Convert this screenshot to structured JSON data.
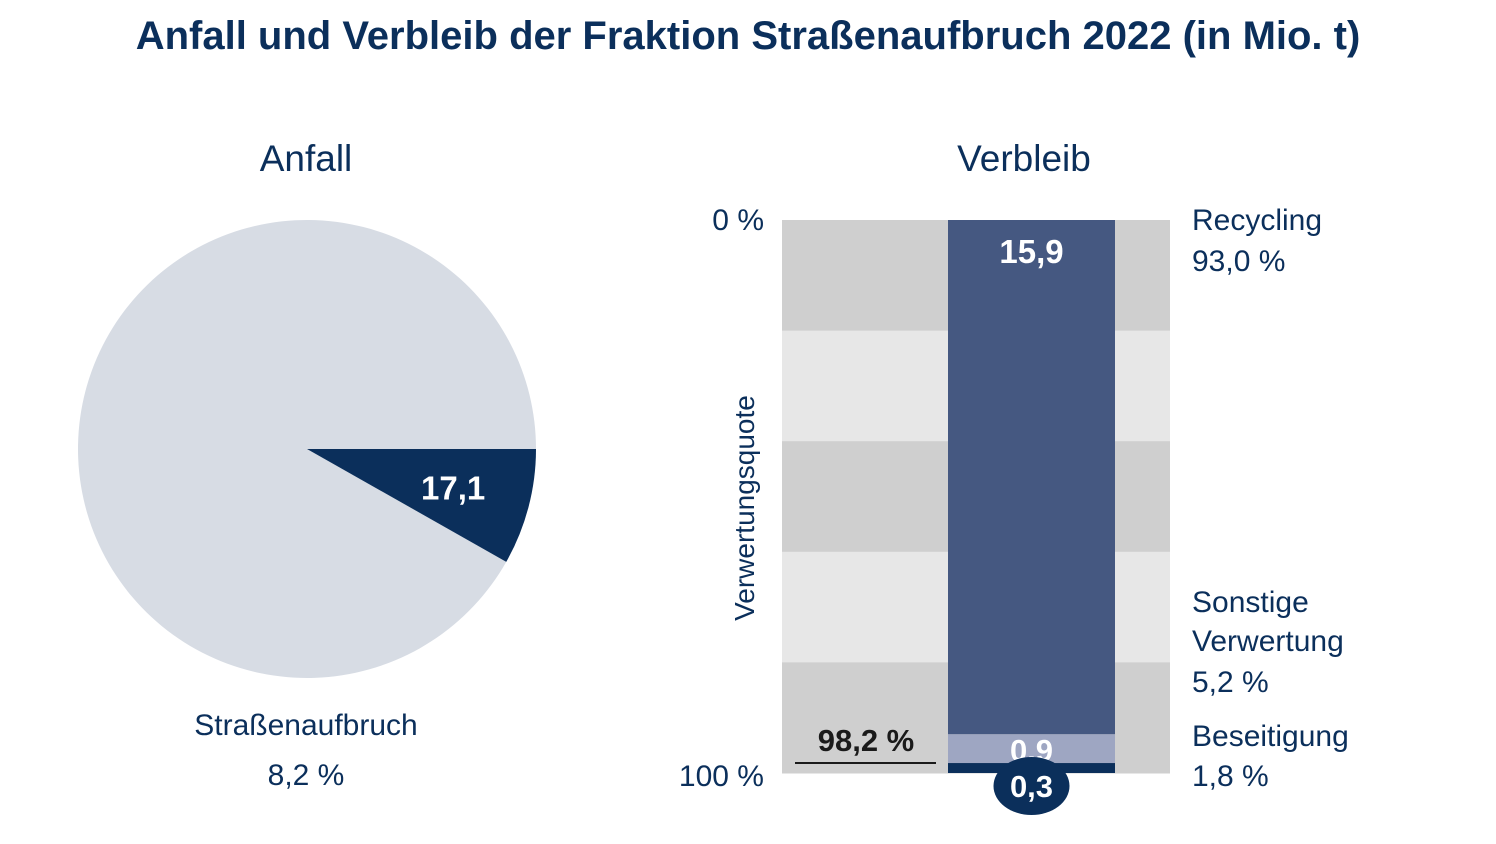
{
  "title": "Anfall und Verbleib der Fraktion Straßenaufbruch 2022 (in Mio. t)",
  "chart_data": [
    {
      "type": "pie",
      "title": "Anfall",
      "slices": [
        {
          "name": "Straßenaufbruch",
          "value": 17.1,
          "value_label": "17,1",
          "share_label": "8,2 %",
          "share": 8.2,
          "color": "#0b2f5b"
        },
        {
          "name": "",
          "share": 91.8,
          "color": "#d7dce4"
        }
      ]
    },
    {
      "type": "bar",
      "stacked": true,
      "title": "Verbleib",
      "ylabel": "Verwertungsquote",
      "ylim": [
        0,
        100
      ],
      "yticks": [
        "0 %",
        "100 %"
      ],
      "segments": [
        {
          "name": "Recycling",
          "share": 93.0,
          "share_label": "93,0 %",
          "value": 15.9,
          "value_label": "15,9",
          "color": "#455881"
        },
        {
          "name": "Sonstige Verwertung",
          "name_lines": [
            "Sonstige",
            "Verwertung"
          ],
          "share": 5.2,
          "share_label": "5,2 %",
          "value": 0.9,
          "value_label": "0,9",
          "color": "#9ea6c2"
        },
        {
          "name": "Beseitigung",
          "share": 1.8,
          "share_label": "1,8 %",
          "value": 0.3,
          "value_label": "0,3",
          "color": "#0b2f5b"
        }
      ],
      "annotation": {
        "label": "98,2 %",
        "value": 98.2
      }
    }
  ]
}
